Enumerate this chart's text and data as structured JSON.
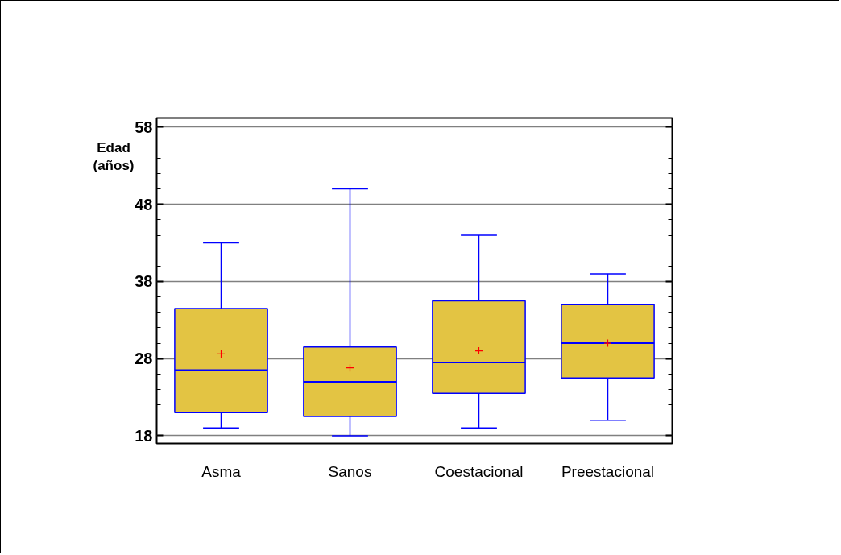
{
  "chart_data": {
    "type": "box",
    "ylabel": "Edad (años)",
    "categories": [
      "Asma",
      "Sanos",
      "Coestacional",
      "Preestacional"
    ],
    "boxes": [
      {
        "low": 19,
        "q1": 21,
        "median": 26.5,
        "q3": 34.5,
        "high": 43,
        "mean": 28.6
      },
      {
        "low": 18,
        "q1": 20.5,
        "median": 25,
        "q3": 29.5,
        "high": 50,
        "mean": 26.8
      },
      {
        "low": 19,
        "q1": 23.5,
        "median": 27.5,
        "q3": 35.5,
        "high": 44,
        "mean": 29
      },
      {
        "low": 20,
        "q1": 25.5,
        "median": 30,
        "q3": 35,
        "high": 39,
        "mean": 30
      }
    ],
    "color": "#e3c443",
    "ylim": [
      17,
      59.2
    ],
    "yticks": [
      18,
      {
        "value": 20,
        "label": null
      },
      {
        "value": 22,
        "label": null
      },
      {
        "value": 24,
        "label": null
      },
      {
        "value": 26,
        "label": null
      },
      28,
      {
        "value": 30,
        "label": null
      },
      {
        "value": 32,
        "label": null
      },
      {
        "value": 34,
        "label": null
      },
      {
        "value": 36,
        "label": null
      },
      38,
      {
        "value": 40,
        "label": null
      },
      {
        "value": 42,
        "label": null
      },
      {
        "value": 44,
        "label": null
      },
      {
        "value": 46,
        "label": null
      },
      48,
      {
        "value": 50,
        "label": null
      },
      {
        "value": 52,
        "label": null
      },
      {
        "value": 54,
        "label": null
      },
      {
        "value": 56,
        "label": null
      },
      58
    ],
    "grid": "y",
    "marker": "cross"
  }
}
